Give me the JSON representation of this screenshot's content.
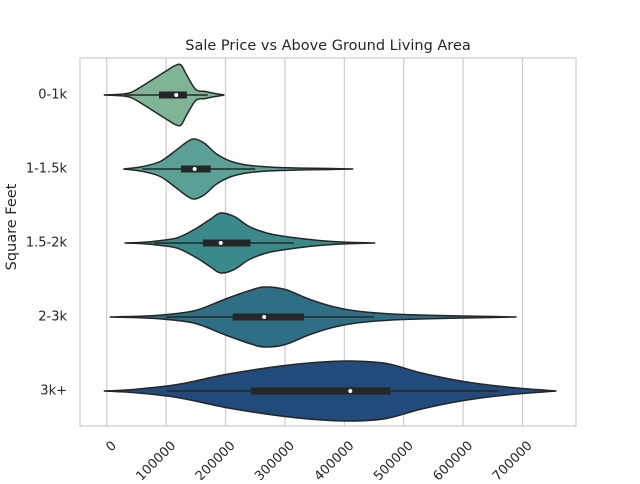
{
  "chart_data": {
    "type": "violin",
    "orientation": "horizontal",
    "title": "Sale Price vs Above Ground Living Area",
    "xlabel": "",
    "ylabel": "Square Feet",
    "xlim": [
      -45000,
      790000
    ],
    "xticks": [
      0,
      100000,
      200000,
      300000,
      400000,
      500000,
      600000,
      700000
    ],
    "grid": "vertical",
    "categories": [
      "0-1k",
      "1-1.5k",
      "1.5-2k",
      "2-3k",
      "3k+"
    ],
    "violins": [
      {
        "category": "0-1k",
        "color": "#7fb497",
        "min": -5000,
        "max": 198000,
        "q1": 88000,
        "median": 117000,
        "q3": 135000,
        "whisker_low": 30000,
        "whisker_high": 170000,
        "density": [
          [
            -5000,
            0.0
          ],
          [
            20000,
            0.02
          ],
          [
            40000,
            0.08
          ],
          [
            60000,
            0.3
          ],
          [
            80000,
            0.55
          ],
          [
            100000,
            0.8
          ],
          [
            115000,
            0.98
          ],
          [
            125000,
            1.0
          ],
          [
            135000,
            0.65
          ],
          [
            150000,
            0.18
          ],
          [
            165000,
            0.12
          ],
          [
            180000,
            0.06
          ],
          [
            198000,
            0.0
          ]
        ]
      },
      {
        "category": "1-1.5k",
        "color": "#5aa094",
        "min": 28000,
        "max": 415000,
        "q1": 125000,
        "median": 148000,
        "q3": 175000,
        "whisker_low": 60000,
        "whisker_high": 250000,
        "density": [
          [
            28000,
            0.0
          ],
          [
            60000,
            0.08
          ],
          [
            90000,
            0.25
          ],
          [
            115000,
            0.6
          ],
          [
            135000,
            0.9
          ],
          [
            148000,
            1.0
          ],
          [
            165000,
            0.85
          ],
          [
            185000,
            0.5
          ],
          [
            210000,
            0.25
          ],
          [
            240000,
            0.12
          ],
          [
            280000,
            0.06
          ],
          [
            330000,
            0.03
          ],
          [
            380000,
            0.015
          ],
          [
            415000,
            0.0
          ]
        ]
      },
      {
        "category": "1.5-2k",
        "color": "#3a8a8c",
        "min": 30000,
        "max": 452000,
        "q1": 162000,
        "median": 192000,
        "q3": 242000,
        "whisker_low": 80000,
        "whisker_high": 315000,
        "density": [
          [
            30000,
            0.0
          ],
          [
            60000,
            0.02
          ],
          [
            90000,
            0.08
          ],
          [
            120000,
            0.18
          ],
          [
            150000,
            0.48
          ],
          [
            175000,
            0.8
          ],
          [
            192000,
            1.0
          ],
          [
            215000,
            0.88
          ],
          [
            240000,
            0.55
          ],
          [
            270000,
            0.33
          ],
          [
            300000,
            0.22
          ],
          [
            330000,
            0.14
          ],
          [
            360000,
            0.08
          ],
          [
            400000,
            0.03
          ],
          [
            452000,
            0.0
          ]
        ]
      },
      {
        "category": "2-3k",
        "color": "#2e6f86",
        "min": 5000,
        "max": 690000,
        "q1": 212000,
        "median": 265000,
        "q3": 332000,
        "whisker_low": 100000,
        "whisker_high": 450000,
        "density": [
          [
            5000,
            0.0
          ],
          [
            60000,
            0.03
          ],
          [
            100000,
            0.08
          ],
          [
            150000,
            0.22
          ],
          [
            200000,
            0.6
          ],
          [
            240000,
            0.88
          ],
          [
            265000,
            1.0
          ],
          [
            300000,
            0.92
          ],
          [
            340000,
            0.6
          ],
          [
            380000,
            0.35
          ],
          [
            420000,
            0.2
          ],
          [
            480000,
            0.1
          ],
          [
            540000,
            0.06
          ],
          [
            600000,
            0.035
          ],
          [
            650000,
            0.015
          ],
          [
            690000,
            0.0
          ]
        ]
      },
      {
        "category": "3k+",
        "color": "#224a7a",
        "min": -5000,
        "max": 757000,
        "q1": 243000,
        "median": 410000,
        "q3": 478000,
        "whisker_low": 100000,
        "whisker_high": 660000,
        "density": [
          [
            -5000,
            0.0
          ],
          [
            50000,
            0.06
          ],
          [
            120000,
            0.22
          ],
          [
            200000,
            0.55
          ],
          [
            280000,
            0.8
          ],
          [
            350000,
            0.95
          ],
          [
            410000,
            1.0
          ],
          [
            470000,
            0.92
          ],
          [
            530000,
            0.6
          ],
          [
            600000,
            0.32
          ],
          [
            680000,
            0.12
          ],
          [
            757000,
            0.0
          ]
        ]
      }
    ]
  }
}
